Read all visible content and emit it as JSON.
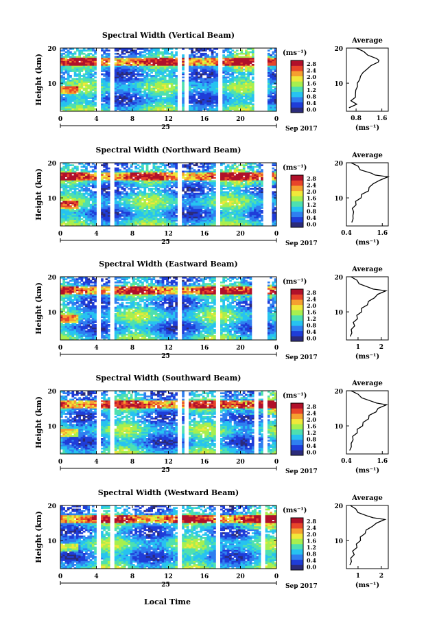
{
  "figure": {
    "xlabel": "Local Time",
    "date_label": "Sep 2017",
    "day_label": "25",
    "colorbar_unit": "(ms⁻¹)",
    "colorbar_ticks": [
      "0.0",
      "0.4",
      "0.8",
      "1.2",
      "1.6",
      "2.0",
      "2.4",
      "2.8"
    ],
    "colormap": [
      "#2b2b7a",
      "#1f3dd8",
      "#2f7ff0",
      "#27c3f0",
      "#4ee0b0",
      "#a7ef4f",
      "#f0e83a",
      "#f5a030",
      "#e8452a",
      "#b0102a"
    ]
  },
  "chart_data": [
    {
      "type": "heatmap",
      "title": "Spectral Width (Vertical Beam)",
      "xlabel": "",
      "ylabel": "Height (km)",
      "xlim": [
        0,
        24
      ],
      "ylim": [
        2,
        20
      ],
      "xticks": [
        "0",
        "4",
        "8",
        "12",
        "16",
        "20",
        "0"
      ],
      "yticks": [
        "10",
        "20"
      ],
      "gaps_hours": [
        [
          4.1,
          4.5
        ],
        [
          5.5,
          6.0
        ],
        [
          13.0,
          13.3
        ],
        [
          13.8,
          14.1
        ],
        [
          17.5,
          17.8
        ],
        [
          21.5,
          21.8
        ],
        [
          22.2,
          22.3
        ],
        [
          22.6,
          22.9
        ]
      ],
      "profile": {
        "title": "Average",
        "xlabel": "(ms⁻¹)",
        "ylabel": "",
        "xlim": [
          0.5,
          1.8
        ],
        "xticks": [
          "0.8",
          "1.6"
        ],
        "yticks": [
          "10",
          "20"
        ],
        "x": [
          0.62,
          0.78,
          0.68,
          0.74,
          0.82,
          0.75,
          0.88,
          0.8,
          0.95,
          0.9,
          1.05,
          1.1,
          1.3,
          1.45,
          1.55,
          1.4,
          1.2,
          1.0,
          0.85
        ],
        "y": [
          3,
          4,
          5,
          6,
          7,
          8,
          9,
          10,
          11,
          12,
          13,
          14,
          15,
          16,
          16.5,
          17,
          18,
          19,
          20
        ]
      }
    },
    {
      "type": "heatmap",
      "title": "Spectral Width (Northward Beam)",
      "xlabel": "",
      "ylabel": "Height (km)",
      "xlim": [
        0,
        24
      ],
      "ylim": [
        2,
        20
      ],
      "xticks": [
        "0",
        "4",
        "8",
        "12",
        "16",
        "20",
        "0"
      ],
      "yticks": [
        "10",
        "20"
      ],
      "gaps_hours": [
        [
          4.1,
          4.5
        ],
        [
          5.5,
          6.0
        ],
        [
          13.0,
          13.3
        ],
        [
          17.4,
          17.7
        ],
        [
          22.5,
          23.3
        ]
      ],
      "profile": {
        "title": "Average",
        "xlabel": "(ms⁻¹)",
        "ylabel": "",
        "xlim": [
          0.4,
          1.8
        ],
        "xticks": [
          "0.4",
          "1.6"
        ],
        "yticks": [
          "10",
          "20"
        ],
        "x": [
          0.62,
          0.58,
          0.66,
          0.6,
          0.64,
          0.68,
          0.75,
          0.85,
          0.95,
          1.1,
          1.2,
          1.25,
          1.55,
          1.75,
          1.4,
          1.2,
          0.9,
          0.75,
          0.6
        ],
        "y": [
          3,
          4,
          5,
          6,
          7,
          8,
          9,
          10,
          11,
          12,
          13,
          14,
          15,
          16,
          16.5,
          17,
          18,
          19,
          20
        ]
      }
    },
    {
      "type": "heatmap",
      "title": "Spectral Width (Eastward Beam)",
      "xlabel": "",
      "ylabel": "Height (km)",
      "xlim": [
        0,
        24
      ],
      "ylim": [
        2,
        20
      ],
      "xticks": [
        "0",
        "4",
        "8",
        "12",
        "16",
        "20",
        "0"
      ],
      "yticks": [
        "10",
        "20"
      ],
      "gaps_hours": [
        [
          4.1,
          4.5
        ],
        [
          5.5,
          6.0
        ],
        [
          13.0,
          13.3
        ],
        [
          17.4,
          17.7
        ],
        [
          21.4,
          21.8
        ],
        [
          22.1,
          22.3
        ],
        [
          22.6,
          22.8
        ]
      ],
      "profile": {
        "title": "Average",
        "xlabel": "(ms⁻¹)",
        "ylabel": "",
        "xlim": [
          0.5,
          2.3
        ],
        "xticks": [
          "1",
          "2"
        ],
        "yticks": [
          "10",
          "20"
        ],
        "x": [
          0.72,
          0.68,
          0.76,
          0.8,
          0.85,
          0.92,
          1.0,
          1.1,
          1.2,
          1.35,
          1.5,
          1.65,
          1.9,
          2.15,
          1.7,
          1.4,
          1.1,
          0.9,
          0.75
        ],
        "y": [
          3,
          4,
          5,
          6,
          7,
          8,
          9,
          10,
          11,
          12,
          13,
          14,
          15,
          16,
          16.5,
          17,
          18,
          19,
          20
        ]
      }
    },
    {
      "type": "heatmap",
      "title": "Spectral Width (Southward Beam)",
      "xlabel": "",
      "ylabel": "Height (km)",
      "xlim": [
        0,
        24
      ],
      "ylim": [
        2,
        20
      ],
      "xticks": [
        "0",
        "4",
        "8",
        "12",
        "16",
        "20",
        "0"
      ],
      "yticks": [
        "10",
        "20"
      ],
      "gaps_hours": [
        [
          4.1,
          4.5
        ],
        [
          5.5,
          6.0
        ],
        [
          13.0,
          13.3
        ],
        [
          13.8,
          14.1
        ],
        [
          17.4,
          17.7
        ],
        [
          21.5,
          21.8
        ],
        [
          22.6,
          23.0
        ]
      ],
      "profile": {
        "title": "Average",
        "xlabel": "(ms⁻¹)",
        "ylabel": "",
        "xlim": [
          0.4,
          1.8
        ],
        "xticks": [
          "0.4",
          "1.6"
        ],
        "yticks": [
          "10",
          "20"
        ],
        "x": [
          0.55,
          0.52,
          0.6,
          0.58,
          0.65,
          0.72,
          0.8,
          0.9,
          1.0,
          1.1,
          1.2,
          1.35,
          1.5,
          1.7,
          1.45,
          1.2,
          0.95,
          0.75,
          0.6
        ],
        "y": [
          3,
          4,
          5,
          6,
          7,
          8,
          9,
          10,
          11,
          12,
          13,
          14,
          15,
          16,
          16.5,
          17,
          18,
          19,
          20
        ]
      }
    },
    {
      "type": "heatmap",
      "title": "Spectral Width (Westward Beam)",
      "xlabel": "Local Time",
      "ylabel": "Height (km)",
      "xlim": [
        0,
        24
      ],
      "ylim": [
        2,
        20
      ],
      "xticks": [
        "0",
        "4",
        "8",
        "12",
        "16",
        "20",
        "0"
      ],
      "yticks": [
        "10",
        "20"
      ],
      "gaps_hours": [
        [
          4.1,
          4.5
        ],
        [
          5.5,
          6.0
        ],
        [
          13.0,
          13.3
        ],
        [
          17.4,
          17.7
        ],
        [
          22.4,
          22.7
        ]
      ],
      "profile": {
        "title": "Average",
        "xlabel": "(ms⁻¹)",
        "ylabel": "",
        "xlim": [
          0.5,
          2.3
        ],
        "xticks": [
          "1",
          "2"
        ],
        "yticks": [
          "10",
          "20"
        ],
        "x": [
          0.7,
          0.66,
          0.74,
          0.78,
          0.82,
          0.9,
          0.98,
          1.05,
          1.15,
          1.25,
          1.4,
          1.55,
          1.85,
          2.1,
          1.7,
          1.35,
          1.05,
          0.85,
          0.72
        ],
        "y": [
          3,
          4,
          5,
          6,
          7,
          8,
          9,
          10,
          11,
          12,
          13,
          14,
          15,
          16,
          16.5,
          17,
          18,
          19,
          20
        ]
      }
    }
  ]
}
